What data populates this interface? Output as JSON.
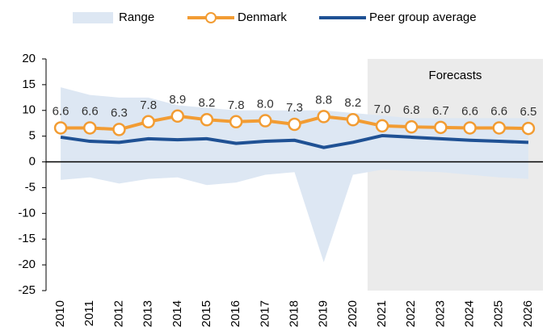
{
  "chart_data": {
    "type": "line",
    "categories": [
      "2010",
      "2011",
      "2012",
      "2013",
      "2014",
      "2015",
      "2016",
      "2017",
      "2018",
      "2019",
      "2020",
      "2021",
      "2022",
      "2023",
      "2024",
      "2025",
      "2026"
    ],
    "series": [
      {
        "name": "Range",
        "kind": "range",
        "color": "#dde7f3",
        "high": [
          14.5,
          13,
          12.5,
          12.5,
          11,
          10.5,
          10,
          10,
          10,
          10,
          9.5,
          9,
          8.5,
          8.5,
          8.5,
          8.5,
          8.5
        ],
        "low": [
          -3.5,
          -3,
          -4.2,
          -3.3,
          -3,
          -4.5,
          -4,
          -2.5,
          -2,
          -19.5,
          -2.5,
          -1.5,
          -1.8,
          -2,
          -2.5,
          -3,
          -3.3
        ]
      },
      {
        "name": "Denmark",
        "kind": "marker-line",
        "color": "#f29c33",
        "values": [
          6.6,
          6.6,
          6.3,
          7.8,
          8.9,
          8.2,
          7.8,
          8.0,
          7.3,
          8.8,
          8.2,
          7.0,
          6.8,
          6.7,
          6.6,
          6.6,
          6.5
        ],
        "value_labels": [
          "6.6",
          "6.6",
          "6.3",
          "7.8",
          "8.9",
          "8.2",
          "7.8",
          "8.0",
          "7.3",
          "8.8",
          "8.2",
          "7.0",
          "6.8",
          "6.7",
          "6.6",
          "6.6",
          "6.5"
        ]
      },
      {
        "name": "Peer group average",
        "kind": "line",
        "color": "#1f5194",
        "values": [
          4.8,
          4.0,
          3.8,
          4.5,
          4.3,
          4.5,
          3.6,
          4.0,
          4.2,
          2.8,
          3.8,
          5.1,
          4.8,
          4.5,
          4.2,
          4.0,
          3.8
        ]
      }
    ],
    "annotation": {
      "text": "Forecasts",
      "from": "2021",
      "to": "2026",
      "color": "#ebebeb"
    },
    "ylim": [
      -25,
      20
    ],
    "yticks": [
      20,
      15,
      10,
      5,
      0,
      -5,
      -10,
      -15,
      -20,
      -25
    ],
    "grid": false
  }
}
